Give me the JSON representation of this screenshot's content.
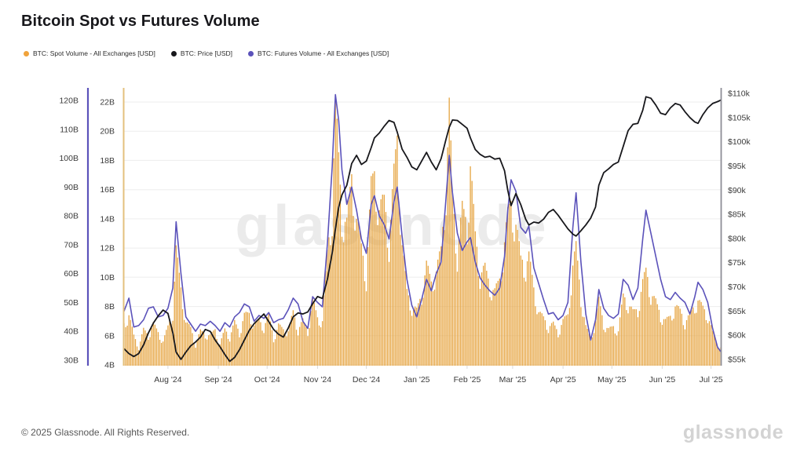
{
  "title": "Bitcoin Spot vs Futures Volume",
  "watermark": "glassnode",
  "footer": {
    "copyright": "© 2025 Glassnode. All Rights Reserved.",
    "brand": "glassnode"
  },
  "legend": [
    {
      "label": "BTC: Spot Volume - All Exchanges [USD]",
      "color": "#F0A33C"
    },
    {
      "label": "BTC: Price [USD]",
      "color": "#17171b"
    },
    {
      "label": "BTC: Futures Volume - All Exchanges [USD]",
      "color": "#5B52BA"
    }
  ],
  "chart_data": {
    "type": "combo",
    "title": "Bitcoin Spot vs Futures Volume",
    "date_start": "2024-07-05",
    "date_end": "2025-07-07",
    "grid": "horizontal",
    "legend_position": "top-left",
    "x_axis": {
      "tick_labels": [
        "Aug '24",
        "Sep '24",
        "Oct '24",
        "Nov '24",
        "Dec '24",
        "Jan '25",
        "Feb '25",
        "Mar '25",
        "Apr '25",
        "May '25",
        "Jun '25",
        "Jul '25"
      ],
      "tick_dates": [
        "2024-08-01",
        "2024-09-01",
        "2024-10-01",
        "2024-11-01",
        "2024-12-01",
        "2025-01-01",
        "2025-02-01",
        "2025-03-01",
        "2025-04-01",
        "2025-05-01",
        "2025-06-01",
        "2025-07-01"
      ]
    },
    "axes": {
      "spot": {
        "side": "left-inner",
        "unit": "USD billions",
        "min": 4,
        "max": 22,
        "ticks": [
          22,
          20,
          18,
          16,
          14,
          12,
          10,
          8,
          6,
          4
        ],
        "tick_labels": [
          "22B",
          "20B",
          "18B",
          "16B",
          "14B",
          "12B",
          "10B",
          "8B",
          "6B",
          "4B"
        ],
        "axis_color": "#E3C07E"
      },
      "futures": {
        "side": "left-outer",
        "unit": "USD billions",
        "min": 30,
        "max": 120,
        "ticks": [
          120,
          110,
          100,
          90,
          80,
          70,
          60,
          50,
          40,
          30
        ],
        "tick_labels": [
          "120B",
          "110B",
          "100B",
          "90B",
          "80B",
          "70B",
          "60B",
          "50B",
          "40B",
          "30B"
        ],
        "axis_color": "#5B52BA"
      },
      "price": {
        "side": "right",
        "unit": "USD",
        "min": 55,
        "max": 110,
        "ticks": [
          110,
          105,
          100,
          95,
          90,
          85,
          80,
          75,
          70,
          65,
          60,
          55
        ],
        "tick_labels": [
          "$110k",
          "$105k",
          "$100k",
          "$95k",
          "$90k",
          "$85k",
          "$80k",
          "$75k",
          "$70k",
          "$65k",
          "$60k",
          "$55k"
        ],
        "axis_color": "#8D8D96"
      }
    },
    "dates": [
      "2024-07-05",
      "2024-07-08",
      "2024-07-11",
      "2024-07-14",
      "2024-07-17",
      "2024-07-20",
      "2024-07-23",
      "2024-07-26",
      "2024-07-29",
      "2024-08-01",
      "2024-08-04",
      "2024-08-06",
      "2024-08-09",
      "2024-08-12",
      "2024-08-15",
      "2024-08-18",
      "2024-08-21",
      "2024-08-24",
      "2024-08-27",
      "2024-08-30",
      "2024-09-02",
      "2024-09-05",
      "2024-09-08",
      "2024-09-11",
      "2024-09-14",
      "2024-09-17",
      "2024-09-20",
      "2024-09-23",
      "2024-09-26",
      "2024-09-29",
      "2024-10-02",
      "2024-10-05",
      "2024-10-08",
      "2024-10-11",
      "2024-10-14",
      "2024-10-17",
      "2024-10-20",
      "2024-10-23",
      "2024-10-26",
      "2024-10-29",
      "2024-11-01",
      "2024-11-04",
      "2024-11-07",
      "2024-11-10",
      "2024-11-12",
      "2024-11-14",
      "2024-11-16",
      "2024-11-19",
      "2024-11-22",
      "2024-11-25",
      "2024-11-28",
      "2024-12-01",
      "2024-12-04",
      "2024-12-06",
      "2024-12-09",
      "2024-12-12",
      "2024-12-15",
      "2024-12-18",
      "2024-12-20",
      "2024-12-23",
      "2024-12-26",
      "2024-12-29",
      "2025-01-01",
      "2025-01-04",
      "2025-01-07",
      "2025-01-10",
      "2025-01-13",
      "2025-01-16",
      "2025-01-19",
      "2025-01-21",
      "2025-01-23",
      "2025-01-26",
      "2025-01-29",
      "2025-02-01",
      "2025-02-03",
      "2025-02-06",
      "2025-02-09",
      "2025-02-12",
      "2025-02-15",
      "2025-02-18",
      "2025-02-21",
      "2025-02-24",
      "2025-02-26",
      "2025-02-28",
      "2025-03-03",
      "2025-03-06",
      "2025-03-09",
      "2025-03-11",
      "2025-03-14",
      "2025-03-17",
      "2025-03-20",
      "2025-03-23",
      "2025-03-26",
      "2025-03-29",
      "2025-04-01",
      "2025-04-04",
      "2025-04-07",
      "2025-04-09",
      "2025-04-12",
      "2025-04-15",
      "2025-04-18",
      "2025-04-21",
      "2025-04-23",
      "2025-04-26",
      "2025-04-29",
      "2025-05-02",
      "2025-05-05",
      "2025-05-08",
      "2025-05-11",
      "2025-05-14",
      "2025-05-17",
      "2025-05-20",
      "2025-05-22",
      "2025-05-25",
      "2025-05-28",
      "2025-05-31",
      "2025-06-03",
      "2025-06-06",
      "2025-06-09",
      "2025-06-12",
      "2025-06-15",
      "2025-06-18",
      "2025-06-21",
      "2025-06-23",
      "2025-06-26",
      "2025-06-29",
      "2025-07-02",
      "2025-07-05",
      "2025-07-07"
    ],
    "series": [
      {
        "name": "BTC: Spot Volume - All Exchanges [USD]",
        "type": "bar",
        "axis": "spot",
        "color": "#E6A440",
        "unit": "billions USD",
        "values": [
          6.8,
          7.4,
          6.0,
          5.2,
          6.4,
          6.0,
          6.8,
          6.2,
          5.6,
          6.6,
          7.6,
          11.8,
          9.2,
          6.9,
          6.5,
          5.4,
          6.3,
          6.1,
          6.0,
          6.4,
          5.4,
          6.4,
          5.9,
          6.9,
          6.2,
          7.4,
          7.5,
          6.7,
          7.0,
          6.6,
          7.4,
          5.8,
          6.7,
          6.4,
          6.3,
          7.6,
          6.4,
          7.0,
          6.3,
          8.4,
          7.2,
          7.0,
          11.6,
          14.5,
          21.8,
          18.0,
          14.2,
          13.6,
          16.8,
          14.0,
          12.0,
          10.0,
          16.2,
          17.0,
          14.6,
          15.2,
          12.4,
          17.0,
          19.4,
          12.2,
          9.0,
          8.0,
          7.7,
          8.8,
          10.8,
          9.6,
          10.4,
          11.8,
          16.2,
          21.6,
          15.4,
          11.6,
          14.6,
          13.6,
          17.6,
          12.8,
          10.2,
          10.6,
          9.4,
          9.0,
          9.8,
          12.4,
          14.2,
          15.0,
          13.6,
          11.2,
          10.8,
          11.4,
          9.2,
          7.6,
          7.2,
          6.6,
          6.8,
          6.2,
          7.0,
          7.4,
          10.8,
          12.0,
          8.6,
          6.6,
          5.8,
          7.0,
          8.4,
          6.8,
          6.4,
          6.6,
          6.3,
          8.7,
          8.2,
          7.6,
          7.8,
          9.6,
          10.4,
          8.9,
          8.3,
          7.4,
          7.0,
          7.3,
          8.0,
          7.7,
          6.9,
          7.4,
          8.1,
          8.4,
          7.9,
          7.4,
          6.2,
          5.4,
          5.2
        ]
      },
      {
        "name": "BTC: Price [USD]",
        "type": "line",
        "axis": "price",
        "color": "#17171b",
        "unit": "thousands USD",
        "values": [
          57.2,
          56.2,
          55.6,
          56.2,
          58.0,
          60.5,
          62.5,
          64.0,
          65.2,
          64.5,
          60.5,
          56.5,
          55.0,
          56.5,
          57.8,
          58.6,
          59.6,
          61.2,
          60.8,
          59.0,
          57.6,
          56.0,
          54.6,
          55.4,
          57.0,
          59.0,
          61.0,
          62.4,
          63.4,
          64.4,
          62.8,
          61.2,
          60.2,
          59.6,
          61.5,
          63.8,
          64.6,
          64.4,
          64.8,
          66.5,
          68.0,
          67.6,
          71.5,
          77.0,
          82.0,
          86.5,
          89.0,
          91.0,
          95.5,
          97.2,
          95.3,
          96.0,
          98.8,
          100.8,
          101.8,
          103.2,
          104.4,
          104.0,
          102.0,
          98.5,
          96.8,
          94.8,
          94.2,
          96.0,
          97.8,
          95.8,
          94.2,
          96.5,
          100.5,
          103.0,
          104.5,
          104.4,
          103.6,
          102.8,
          100.8,
          98.4,
          97.4,
          96.8,
          97.0,
          96.4,
          96.6,
          94.0,
          90.0,
          86.8,
          89.3,
          87.0,
          84.0,
          82.8,
          83.4,
          83.2,
          84.0,
          85.4,
          86.0,
          84.8,
          83.4,
          82.0,
          80.9,
          80.5,
          81.6,
          82.8,
          84.2,
          86.5,
          91.0,
          93.6,
          94.4,
          95.3,
          95.8,
          99.0,
          102.3,
          103.6,
          103.8,
          106.5,
          109.3,
          109.0,
          107.6,
          105.9,
          105.6,
          107.0,
          107.9,
          107.6,
          106.2,
          105.0,
          104.1,
          103.8,
          105.6,
          107.0,
          107.9,
          108.3,
          108.6
        ]
      },
      {
        "name": "BTC: Futures Volume - All Exchanges [USD]",
        "type": "line",
        "axis": "futures",
        "color": "#5B52BA",
        "unit": "billions USD",
        "values": [
          47,
          51.5,
          41.5,
          42,
          44,
          48,
          48.5,
          45,
          45.5,
          48,
          55,
          78,
          60,
          45,
          42.5,
          40,
          42.5,
          42,
          43.5,
          42,
          40,
          43,
          41.5,
          45,
          46.5,
          49.5,
          48.5,
          43.5,
          45.5,
          44.5,
          46.5,
          43,
          44,
          44.5,
          47.5,
          51.5,
          49.5,
          43.5,
          41,
          52,
          50,
          48.5,
          70,
          97,
          122,
          113,
          96,
          84,
          90,
          82,
          72,
          67,
          84,
          87,
          80,
          77,
          72,
          85,
          90,
          73,
          58,
          49,
          45,
          51,
          58,
          54,
          60,
          64,
          86,
          101,
          88,
          74,
          68,
          71,
          72.5,
          64,
          58.5,
          56,
          54,
          52.5,
          55,
          66,
          82,
          92.5,
          88.5,
          76,
          74,
          76.5,
          62,
          56.5,
          51,
          46,
          46.5,
          44,
          45.5,
          50,
          76,
          88,
          64,
          46,
          37,
          44,
          54.5,
          48,
          45.5,
          44.5,
          46,
          58,
          56,
          51,
          55,
          72,
          82,
          74,
          66,
          58,
          52,
          51,
          53.5,
          51.5,
          50,
          46,
          52,
          57,
          54.5,
          50,
          41,
          34.5,
          33
        ]
      }
    ]
  }
}
